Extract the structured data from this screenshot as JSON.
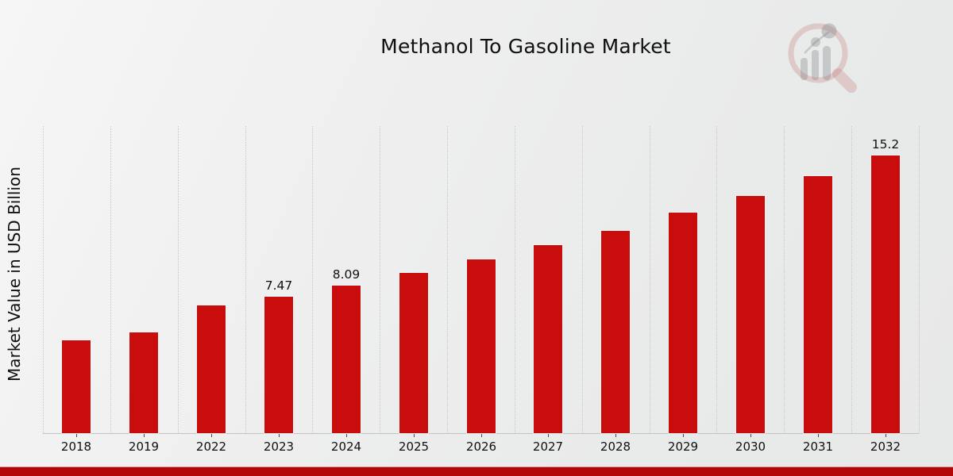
{
  "page": {
    "title": "Methanol To Gasoline Market",
    "ylabel": "Market Value in USD Billion"
  },
  "colors": {
    "bar": "#c90d0d",
    "bottom_stripe": "#b30707",
    "grid": "#c7c7c7",
    "axis": "#c3c3c3",
    "text": "#111111",
    "watermark_pink": "rgba(200,125,125,0.30)",
    "watermark_gray": "rgba(125,125,130,0.32)"
  },
  "chart_data": {
    "type": "bar",
    "title": "Methanol To Gasoline Market",
    "ylabel": "Market Value in USD Billion",
    "xlabel": "",
    "categories": [
      "2018",
      "2019",
      "2022",
      "2023",
      "2024",
      "2025",
      "2026",
      "2027",
      "2028",
      "2029",
      "2030",
      "2031",
      "2032"
    ],
    "values": [
      5.1,
      5.5,
      7.0,
      7.47,
      8.09,
      8.8,
      9.5,
      10.3,
      11.1,
      12.1,
      13.0,
      14.1,
      15.2
    ],
    "point_labels": [
      "",
      "",
      "",
      "7.47",
      "8.09",
      "",
      "",
      "",
      "",
      "",
      "",
      "",
      "15.2"
    ],
    "ylim": [
      0,
      16.8
    ],
    "grid": "vertical dotted gridlines, no horizontal gridlines",
    "legend": "none",
    "bar_color": "#c90d0d"
  }
}
